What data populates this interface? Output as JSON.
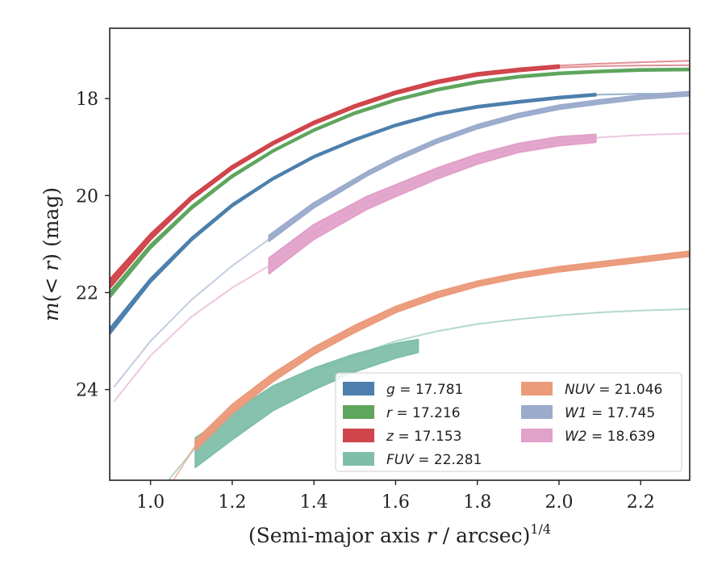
{
  "chart_data": {
    "type": "line",
    "xlabel": "(Semi-major axis r / arcsec)1/4",
    "xlabel_parts": {
      "main": "(Semi-major axis ",
      "var": "r",
      "mid": " / arcsec)",
      "sup": "1/4"
    },
    "ylabel": "m(< r) (mag)",
    "ylabel_parts": {
      "m": "m",
      "open": "(",
      "lt": "< ",
      "r": "r",
      "close": ")",
      "unit": " (mag)"
    },
    "xlim": [
      0.9,
      2.32
    ],
    "ylim": [
      25.87,
      16.55
    ],
    "y_inverted": true,
    "xticks": [
      1.0,
      1.2,
      1.4,
      1.6,
      1.8,
      2.0,
      2.2
    ],
    "xtick_labels": [
      "1.0",
      "1.2",
      "1.4",
      "1.6",
      "1.8",
      "2.0",
      "2.2"
    ],
    "yticks": [
      18,
      20,
      22,
      24
    ],
    "ytick_labels": [
      "18",
      "20",
      "22",
      "24"
    ],
    "grid": false,
    "legend_position": "lower-right",
    "series": [
      {
        "name": "g = 17.781",
        "label_var": "g",
        "label_val": "= 17.781",
        "color": "#4c7fac",
        "thin": [
          [
            0.9,
            22.8
          ],
          [
            1.0,
            21.75
          ],
          [
            1.1,
            20.9
          ],
          [
            1.2,
            20.2
          ],
          [
            1.3,
            19.65
          ],
          [
            1.4,
            19.2
          ],
          [
            1.5,
            18.85
          ],
          [
            1.6,
            18.55
          ],
          [
            1.7,
            18.32
          ],
          [
            1.8,
            18.17
          ],
          [
            1.9,
            18.07
          ],
          [
            2.0,
            17.98
          ],
          [
            2.1,
            17.92
          ],
          [
            2.2,
            17.9
          ],
          [
            2.32,
            17.9
          ]
        ],
        "band": [
          [
            0.9,
            22.8,
            0.06
          ],
          [
            1.0,
            21.75,
            0.04
          ],
          [
            1.1,
            20.9,
            0.03
          ],
          [
            1.2,
            20.2,
            0.025
          ],
          [
            1.3,
            19.65,
            0.02
          ],
          [
            1.4,
            19.2,
            0.02
          ],
          [
            1.5,
            18.85,
            0.02
          ],
          [
            1.6,
            18.55,
            0.02
          ],
          [
            1.7,
            18.32,
            0.02
          ],
          [
            1.8,
            18.17,
            0.02
          ],
          [
            1.9,
            18.07,
            0.02
          ],
          [
            2.0,
            17.98,
            0.02
          ],
          [
            2.09,
            17.92,
            0.02
          ]
        ]
      },
      {
        "name": "r = 17.216",
        "label_var": "r",
        "label_val": "= 17.216",
        "color": "#5ea55e",
        "thin": [
          [
            0.9,
            22.05
          ],
          [
            1.0,
            21.05
          ],
          [
            1.1,
            20.25
          ],
          [
            1.2,
            19.6
          ],
          [
            1.3,
            19.08
          ],
          [
            1.4,
            18.65
          ],
          [
            1.5,
            18.3
          ],
          [
            1.6,
            18.03
          ],
          [
            1.7,
            17.82
          ],
          [
            1.8,
            17.66
          ],
          [
            1.9,
            17.55
          ],
          [
            2.0,
            17.48
          ],
          [
            2.1,
            17.44
          ],
          [
            2.2,
            17.41
          ],
          [
            2.32,
            17.4
          ]
        ],
        "band": [
          [
            0.9,
            22.05,
            0.06
          ],
          [
            1.0,
            21.05,
            0.04
          ],
          [
            1.1,
            20.25,
            0.03
          ],
          [
            1.2,
            19.6,
            0.025
          ],
          [
            1.3,
            19.08,
            0.02
          ],
          [
            1.4,
            18.65,
            0.02
          ],
          [
            1.5,
            18.3,
            0.02
          ],
          [
            1.6,
            18.03,
            0.02
          ],
          [
            1.7,
            17.82,
            0.02
          ],
          [
            1.8,
            17.66,
            0.02
          ],
          [
            1.9,
            17.55,
            0.02
          ],
          [
            2.0,
            17.48,
            0.02
          ],
          [
            2.1,
            17.44,
            0.02
          ],
          [
            2.2,
            17.41,
            0.02
          ],
          [
            2.32,
            17.4,
            0.02
          ]
        ]
      },
      {
        "name": "z = 17.153",
        "label_var": "z",
        "label_val": "= 17.153",
        "color": "#d0444b",
        "thin": [
          [
            0.9,
            21.82
          ],
          [
            1.0,
            20.85
          ],
          [
            1.1,
            20.05
          ],
          [
            1.2,
            19.42
          ],
          [
            1.3,
            18.92
          ],
          [
            1.4,
            18.5
          ],
          [
            1.5,
            18.16
          ],
          [
            1.6,
            17.88
          ],
          [
            1.7,
            17.66
          ],
          [
            1.8,
            17.5
          ],
          [
            1.9,
            17.4
          ],
          [
            2.0,
            17.32
          ],
          [
            2.1,
            17.28
          ],
          [
            2.2,
            17.25
          ],
          [
            2.32,
            17.22
          ]
        ],
        "thin2": [
          [
            1.9,
            17.42
          ],
          [
            2.0,
            17.36
          ],
          [
            2.1,
            17.33
          ],
          [
            2.2,
            17.32
          ],
          [
            2.32,
            17.31
          ]
        ],
        "band": [
          [
            0.9,
            21.82,
            0.09
          ],
          [
            1.0,
            20.85,
            0.06
          ],
          [
            1.1,
            20.05,
            0.04
          ],
          [
            1.2,
            19.42,
            0.035
          ],
          [
            1.3,
            18.92,
            0.03
          ],
          [
            1.4,
            18.5,
            0.03
          ],
          [
            1.5,
            18.16,
            0.03
          ],
          [
            1.6,
            17.88,
            0.03
          ],
          [
            1.7,
            17.66,
            0.03
          ],
          [
            1.8,
            17.5,
            0.03
          ],
          [
            1.9,
            17.41,
            0.03
          ],
          [
            2.0,
            17.34,
            0.03
          ]
        ]
      },
      {
        "name": "FUV = 22.281",
        "label_var": "FUV",
        "label_val": "= 22.281",
        "color": "#7fbfa9",
        "thin": [
          [
            1.0,
            26.5
          ],
          [
            1.05,
            25.8
          ],
          [
            1.11,
            25.2
          ],
          [
            1.2,
            24.6
          ],
          [
            1.3,
            24.1
          ],
          [
            1.4,
            23.65
          ],
          [
            1.5,
            23.3
          ],
          [
            1.6,
            23.0
          ],
          [
            1.7,
            22.8
          ],
          [
            1.8,
            22.65
          ],
          [
            1.9,
            22.55
          ],
          [
            2.0,
            22.47
          ],
          [
            2.1,
            22.41
          ],
          [
            2.2,
            22.37
          ],
          [
            2.32,
            22.34
          ]
        ],
        "band": [
          [
            1.11,
            25.3,
            0.3
          ],
          [
            1.2,
            24.75,
            0.28
          ],
          [
            1.3,
            24.18,
            0.25
          ],
          [
            1.4,
            23.78,
            0.22
          ],
          [
            1.5,
            23.45,
            0.18
          ],
          [
            1.6,
            23.2,
            0.15
          ],
          [
            1.655,
            23.1,
            0.13
          ]
        ]
      },
      {
        "name": "NUV = 21.046",
        "label_var": "NUV",
        "label_val": "= 21.046",
        "color": "#eb9a7a",
        "thin": [
          [
            1.0,
            26.6
          ],
          [
            1.05,
            25.95
          ],
          [
            1.11,
            25.15
          ],
          [
            1.2,
            24.4
          ],
          [
            1.3,
            23.75
          ],
          [
            1.4,
            23.2
          ],
          [
            1.5,
            22.75
          ],
          [
            1.6,
            22.35
          ],
          [
            1.7,
            22.05
          ],
          [
            1.8,
            21.82
          ],
          [
            1.9,
            21.65
          ],
          [
            2.0,
            21.52
          ],
          [
            2.1,
            21.42
          ],
          [
            2.2,
            21.32
          ],
          [
            2.32,
            21.2
          ]
        ],
        "band": [
          [
            1.11,
            25.15,
            0.1
          ],
          [
            1.2,
            24.4,
            0.09
          ],
          [
            1.3,
            23.75,
            0.08
          ],
          [
            1.4,
            23.2,
            0.07
          ],
          [
            1.5,
            22.75,
            0.07
          ],
          [
            1.6,
            22.35,
            0.06
          ],
          [
            1.7,
            22.05,
            0.06
          ],
          [
            1.8,
            21.82,
            0.05
          ],
          [
            1.9,
            21.65,
            0.05
          ],
          [
            2.0,
            21.52,
            0.05
          ],
          [
            2.1,
            21.42,
            0.05
          ],
          [
            2.2,
            21.32,
            0.05
          ],
          [
            2.32,
            21.2,
            0.05
          ]
        ]
      },
      {
        "name": "W1 = 17.745",
        "label_var": "W1",
        "label_val": "= 17.745",
        "color": "#9babcc",
        "thin": [
          [
            0.91,
            23.95
          ],
          [
            1.0,
            23.0
          ],
          [
            1.1,
            22.15
          ],
          [
            1.2,
            21.45
          ],
          [
            1.29,
            20.9
          ],
          [
            1.4,
            20.2
          ],
          [
            1.53,
            19.55
          ],
          [
            1.6,
            19.25
          ],
          [
            1.7,
            18.88
          ],
          [
            1.8,
            18.58
          ],
          [
            1.9,
            18.35
          ],
          [
            2.0,
            18.18
          ],
          [
            2.1,
            18.07
          ],
          [
            2.2,
            17.97
          ],
          [
            2.32,
            17.9
          ]
        ],
        "band": [
          [
            1.29,
            20.88,
            0.06
          ],
          [
            1.4,
            20.2,
            0.05
          ],
          [
            1.53,
            19.55,
            0.04
          ],
          [
            1.6,
            19.25,
            0.04
          ],
          [
            1.7,
            18.88,
            0.04
          ],
          [
            1.8,
            18.58,
            0.04
          ],
          [
            1.9,
            18.35,
            0.04
          ],
          [
            2.0,
            18.18,
            0.04
          ],
          [
            2.1,
            18.07,
            0.04
          ],
          [
            2.2,
            17.97,
            0.04
          ],
          [
            2.32,
            17.9,
            0.04
          ]
        ]
      },
      {
        "name": "W2 = 18.639",
        "label_var": "W2",
        "label_val": "= 18.639",
        "color": "#e1a1c9",
        "thin": [
          [
            0.91,
            24.25
          ],
          [
            1.0,
            23.3
          ],
          [
            1.1,
            22.5
          ],
          [
            1.2,
            21.9
          ],
          [
            1.29,
            21.45
          ],
          [
            1.4,
            20.75
          ],
          [
            1.53,
            20.15
          ],
          [
            1.6,
            19.9
          ],
          [
            1.7,
            19.55
          ],
          [
            1.8,
            19.25
          ],
          [
            1.9,
            19.02
          ],
          [
            2.0,
            18.88
          ],
          [
            2.1,
            18.8
          ],
          [
            2.2,
            18.75
          ],
          [
            2.32,
            18.72
          ]
        ],
        "band": [
          [
            1.29,
            21.45,
            0.16
          ],
          [
            1.4,
            20.75,
            0.15
          ],
          [
            1.53,
            20.15,
            0.13
          ],
          [
            1.6,
            19.9,
            0.12
          ],
          [
            1.7,
            19.55,
            0.11
          ],
          [
            1.8,
            19.25,
            0.1
          ],
          [
            1.9,
            19.02,
            0.09
          ],
          [
            2.0,
            18.88,
            0.09
          ],
          [
            2.09,
            18.82,
            0.08
          ]
        ]
      }
    ],
    "legend_columns": [
      [
        "g = 17.781",
        "r = 17.216",
        "z = 17.153",
        "FUV = 22.281"
      ],
      [
        "NUV = 21.046",
        "W1 = 17.745",
        "W2 = 18.639"
      ]
    ]
  }
}
